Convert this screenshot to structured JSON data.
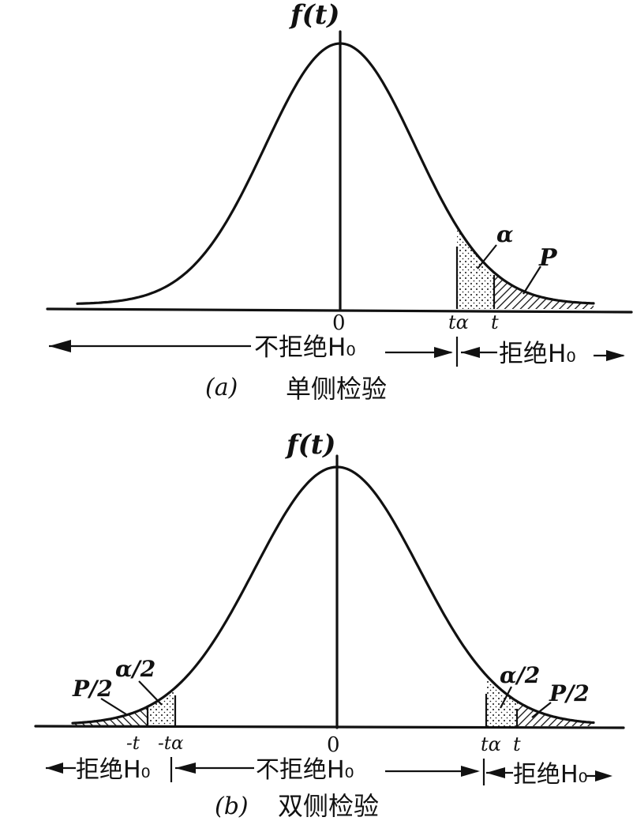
{
  "panel_a": {
    "y_label": "f(t)",
    "zero": "0",
    "t_alpha": "tα",
    "t": "t",
    "alpha": "α",
    "p": "P",
    "keep_region": "不拒绝H₀",
    "reject_region": "拒绝H₀",
    "caption_letter": "(a)",
    "caption_text": "单侧检验"
  },
  "panel_b": {
    "y_label": "f(t)",
    "zero": "0",
    "neg_t": "-t",
    "neg_t_alpha": "-tα",
    "t_alpha": "tα",
    "t": "t",
    "half_alpha_left": "α/2",
    "half_alpha_right": "α/2",
    "half_p_left": "P/2",
    "half_p_right": "P/2",
    "reject_left": "拒绝H₀",
    "keep_region": "不拒绝H₀",
    "reject_right": "拒绝H₀",
    "caption_letter": "(b)",
    "caption_text": "双侧检验"
  }
}
